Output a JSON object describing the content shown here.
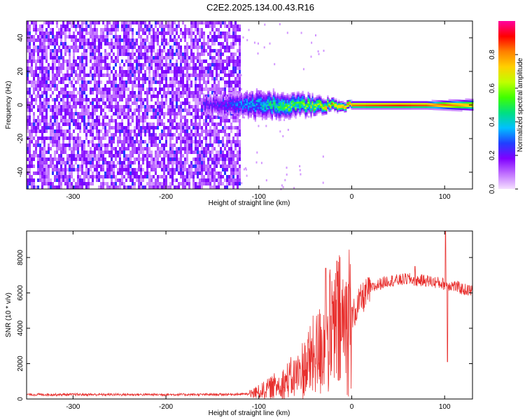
{
  "title": "C2E2.2025.134.00.43.R16",
  "chart_data": [
    {
      "type": "heatmap",
      "xlabel": "Height of straight line (km)",
      "ylabel": "Frequency (Hz)",
      "xlim": [
        -350,
        130
      ],
      "ylim": [
        -50,
        50
      ],
      "xticks": [
        -300,
        -200,
        -100,
        0,
        100
      ],
      "yticks": [
        -40,
        -20,
        0,
        20,
        40
      ],
      "colorbar": {
        "label": "Normalized spectral amplitude",
        "range": [
          0,
          1
        ],
        "ticks": [
          "0.0",
          "0.2",
          "0.4",
          "0.6",
          "0.8"
        ],
        "colors": [
          "#f5e0ff",
          "#c070ff",
          "#8000ff",
          "#2040ff",
          "#00c0ff",
          "#00e080",
          "#40ff00",
          "#c0ff00",
          "#ffd000",
          "#ff8000",
          "#ff0000",
          "#ff00a0"
        ]
      },
      "regions": [
        {
          "name": "noise",
          "x": [
            -350,
            -120
          ],
          "freq": [
            -50,
            50
          ],
          "amplitude": [
            0.05,
            0.2
          ]
        },
        {
          "name": "signal",
          "x": [
            -160,
            130
          ],
          "freq_center": 0,
          "amplitude": [
            0.2,
            0.95
          ]
        }
      ],
      "signal_halfwidth": {
        "x": [
          -160,
          -120,
          -100,
          -80,
          -60,
          -40,
          -20,
          0,
          40,
          80,
          130
        ],
        "hz": [
          6,
          7,
          8,
          7,
          6,
          5,
          3,
          2,
          2,
          2,
          3
        ]
      },
      "signal_peak": {
        "x": [
          -150,
          -100,
          -70,
          -40,
          -20,
          0,
          50,
          100,
          130
        ],
        "amplitude": [
          0.2,
          0.35,
          0.5,
          0.55,
          0.7,
          0.85,
          0.9,
          0.85,
          0.75
        ]
      }
    },
    {
      "type": "line",
      "xlabel": "Height of straight line (km)",
      "ylabel": "SNR (10 * v/v)",
      "xlim": [
        -350,
        130
      ],
      "ylim": [
        0,
        9500
      ],
      "xticks": [
        -300,
        -200,
        -100,
        0,
        100
      ],
      "yticks": [
        0,
        2000,
        4000,
        6000,
        8000
      ],
      "color": "#e8302e",
      "series": [
        {
          "x": [
            -350,
            -300,
            -250,
            -200,
            -150,
            -110,
            -100,
            -90,
            -80,
            -70,
            -60,
            -50,
            -40,
            -30,
            -20,
            -10,
            0,
            10,
            20,
            30,
            40,
            50,
            60,
            70,
            80,
            90,
            100,
            110,
            120,
            130
          ],
          "values": [
            250,
            250,
            250,
            250,
            250,
            280,
            400,
            600,
            800,
            1000,
            1300,
            1800,
            2400,
            3200,
            3800,
            4100,
            4600,
            5600,
            6200,
            6500,
            6700,
            6700,
            6800,
            6700,
            6700,
            6600,
            6500,
            6400,
            6200,
            6100
          ]
        }
      ],
      "spikes": [
        {
          "x": -16,
          "value": 7800
        },
        {
          "x": -28,
          "value": 7400
        },
        {
          "x": 68,
          "value": 7500
        },
        {
          "x": 101,
          "value": 9500
        },
        {
          "x": 103,
          "value": 2100
        }
      ]
    }
  ]
}
